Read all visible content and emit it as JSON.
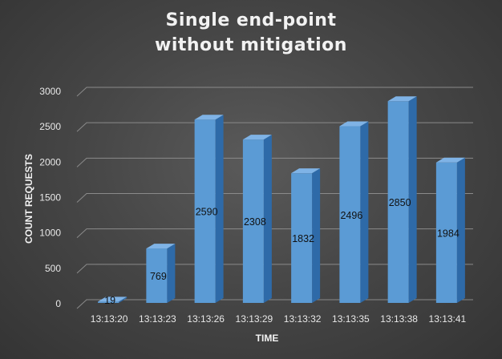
{
  "chart_data": {
    "type": "bar",
    "title": [
      "Single end-point",
      "without mitigation"
    ],
    "xlabel": "TIME",
    "ylabel": "COUNT REQUESTS",
    "categories": [
      "13:13:20",
      "13:13:23",
      "13:13:26",
      "13:13:29",
      "13:13:32",
      "13:13:35",
      "13:13:38",
      "13:13:41"
    ],
    "values": [
      19,
      769,
      2590,
      2308,
      1832,
      2496,
      2850,
      1984
    ],
    "data_labels": [
      "19",
      "769",
      "2590",
      "2308",
      "1832",
      "2496",
      "2850",
      "1984"
    ],
    "ylim": [
      0,
      3000
    ],
    "yticks": [
      "0",
      "500",
      "1000",
      "1500",
      "2000",
      "2500",
      "3000"
    ],
    "grid": true,
    "style": "3d-column",
    "colors": {
      "bar_front": "#5b9bd5",
      "bar_side": "#2e6aa8",
      "bar_top": "#7fb3e6",
      "gridline": "#8a8a8a",
      "background": "#474747"
    }
  }
}
